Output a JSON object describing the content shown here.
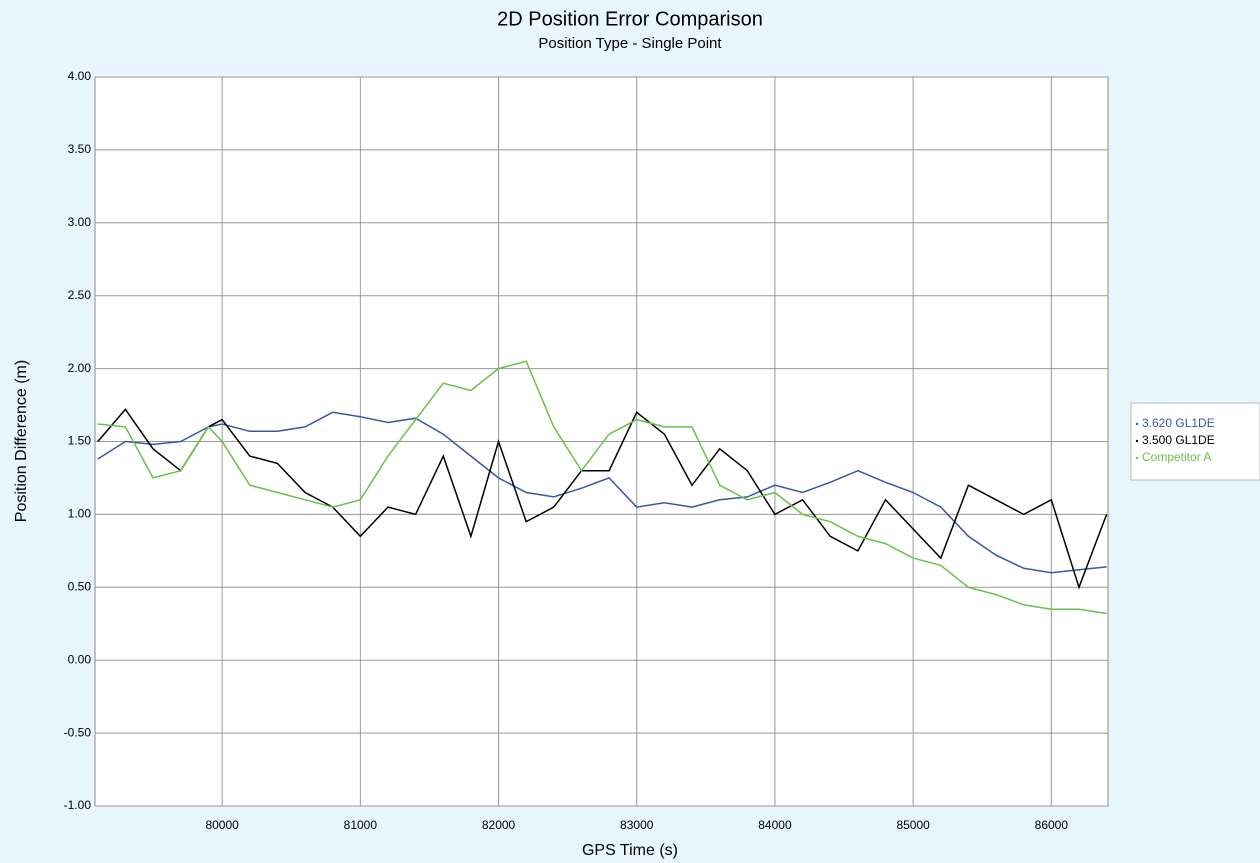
{
  "chart_data": {
    "type": "line",
    "title": "2D Position Error Comparison",
    "subtitle": "Position Type - Single Point",
    "x_label": "GPS Time (s)",
    "y_label": "Position Difference (m)",
    "x": [
      79100,
      79300,
      79500,
      79700,
      79900,
      80000,
      80200,
      80400,
      80600,
      80800,
      81000,
      81200,
      81400,
      81600,
      81800,
      82000,
      82200,
      82400,
      82600,
      82800,
      83000,
      83200,
      83400,
      83600,
      83800,
      84000,
      84200,
      84400,
      84600,
      84800,
      85000,
      85200,
      85400,
      85600,
      85800,
      86000,
      86200,
      86400
    ],
    "series": [
      {
        "name": "3.620 GL1DE",
        "color": "#3a55a8",
        "values": [
          1.38,
          1.5,
          1.48,
          1.5,
          1.6,
          1.62,
          1.57,
          1.57,
          1.6,
          1.7,
          1.67,
          1.63,
          1.66,
          1.55,
          1.4,
          1.25,
          1.15,
          1.12,
          1.18,
          1.25,
          1.05,
          1.08,
          1.05,
          1.1,
          1.12,
          1.2,
          1.15,
          1.22,
          1.3,
          1.22,
          1.15,
          1.05,
          0.85,
          0.72,
          0.63,
          0.6,
          0.62,
          0.64
        ]
      },
      {
        "name": "3.500 GL1DE",
        "color": "#000000",
        "values": [
          1.5,
          1.72,
          1.45,
          1.3,
          1.6,
          1.65,
          1.4,
          1.35,
          1.15,
          1.05,
          0.85,
          1.05,
          1.0,
          1.4,
          0.85,
          1.5,
          0.95,
          1.05,
          1.3,
          1.3,
          1.7,
          1.55,
          1.2,
          1.45,
          1.3,
          1.0,
          1.1,
          0.85,
          0.75,
          1.1,
          0.9,
          0.7,
          1.2,
          1.1,
          1.0,
          1.1,
          0.5,
          1.0
        ]
      },
      {
        "name": "Competitor A",
        "color": "#6cc04a",
        "values": [
          1.62,
          1.6,
          1.25,
          1.3,
          1.6,
          1.5,
          1.2,
          1.15,
          1.1,
          1.05,
          1.1,
          1.4,
          1.65,
          1.9,
          1.85,
          2.0,
          2.05,
          1.6,
          1.3,
          1.55,
          1.65,
          1.6,
          1.6,
          1.2,
          1.1,
          1.15,
          1.0,
          0.95,
          0.85,
          0.8,
          0.7,
          0.65,
          0.5,
          0.45,
          0.38,
          0.35,
          0.35,
          0.32
        ]
      }
    ],
    "xlim": [
      79080,
      86410
    ],
    "xticks": [
      80000,
      81000,
      82000,
      83000,
      84000,
      85000,
      86000
    ],
    "ylim": [
      -1,
      4
    ],
    "yticks": [
      {
        "value": -1,
        "label": "-1.00"
      },
      {
        "value": -0.5,
        "label": "-0.50"
      },
      {
        "value": 0,
        "label": "0.00"
      },
      {
        "value": 0.5,
        "label": "0.50"
      },
      {
        "value": 1,
        "label": "1.00"
      },
      {
        "value": 1.5,
        "label": "1.50"
      },
      {
        "value": 2,
        "label": "2.00"
      },
      {
        "value": 2.5,
        "label": "2.50"
      },
      {
        "value": 3,
        "label": "3.00"
      },
      {
        "value": 3.5,
        "label": "3.50"
      },
      {
        "value": 4,
        "label": "4.00"
      }
    ],
    "grid": true,
    "legend": "right"
  }
}
